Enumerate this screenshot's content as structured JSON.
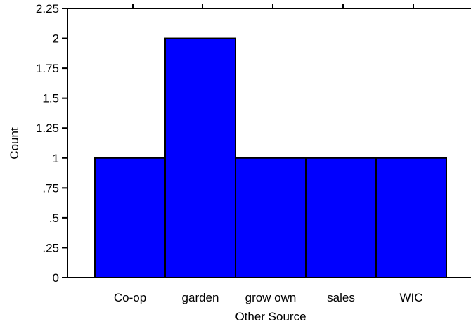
{
  "chart_data": {
    "type": "bar",
    "categories": [
      "Co-op",
      "garden",
      "grow own",
      "sales",
      "WIC"
    ],
    "values": [
      1,
      2,
      1,
      1,
      1
    ],
    "xlabel": "Other Source",
    "ylabel": "Count",
    "ylim": [
      0,
      2.25
    ],
    "yticks": [
      {
        "value": 0,
        "label": "0"
      },
      {
        "value": 0.25,
        "label": ".25"
      },
      {
        "value": 0.5,
        "label": ".5"
      },
      {
        "value": 0.75,
        "label": ".75"
      },
      {
        "value": 1,
        "label": "1"
      },
      {
        "value": 1.25,
        "label": "1.25"
      },
      {
        "value": 1.5,
        "label": "1.5"
      },
      {
        "value": 1.75,
        "label": "1.75"
      },
      {
        "value": 2,
        "label": "2"
      },
      {
        "value": 2.25,
        "label": "2.25"
      }
    ],
    "bar_color": "#0000ff",
    "grid": false
  }
}
